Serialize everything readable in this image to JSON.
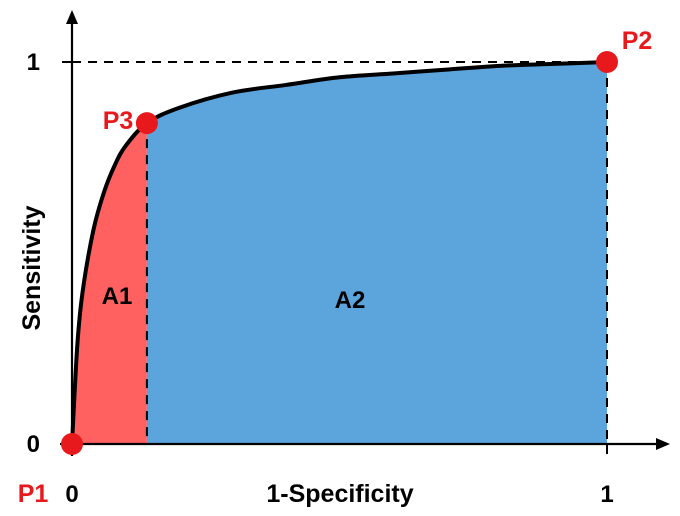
{
  "chart_data": {
    "type": "area",
    "title": "",
    "xlabel": "1-Specificity",
    "ylabel": "Sensitivity",
    "xlim": [
      0,
      1
    ],
    "ylim": [
      0,
      1
    ],
    "x_ticks": [
      {
        "value": 0,
        "label": "0"
      },
      {
        "value": 1,
        "label": "1"
      }
    ],
    "y_ticks": [
      {
        "value": 0,
        "label": "0"
      },
      {
        "value": 1,
        "label": "1"
      }
    ],
    "curve": {
      "x": [
        0,
        0.01,
        0.02,
        0.04,
        0.06,
        0.08,
        0.1,
        0.14,
        0.2,
        0.3,
        0.4,
        0.5,
        0.6,
        0.7,
        0.8,
        0.9,
        1.0
      ],
      "y": [
        0,
        0.26,
        0.4,
        0.56,
        0.66,
        0.73,
        0.78,
        0.84,
        0.88,
        0.92,
        0.94,
        0.96,
        0.97,
        0.98,
        0.99,
        0.995,
        1.0
      ]
    },
    "points": [
      {
        "label": "P1",
        "x": 0,
        "y": 0
      },
      {
        "label": "P2",
        "x": 1,
        "y": 1
      },
      {
        "label": "P3",
        "x": 0.14,
        "y": 0.84
      }
    ],
    "regions": [
      {
        "label": "A1",
        "x_from": 0,
        "x_to": 0.14,
        "color": "#ff6060"
      },
      {
        "label": "A2",
        "x_from": 0.14,
        "x_to": 1,
        "color": "#5ca4dc"
      }
    ],
    "colors": {
      "curve": "#000000",
      "points": "#e8191c",
      "point_labels": "#e8191c"
    },
    "grid": false,
    "legend": "none",
    "reference_lines": "dashed horizontal at y=1 and dashed vertical at P2 and P3"
  }
}
